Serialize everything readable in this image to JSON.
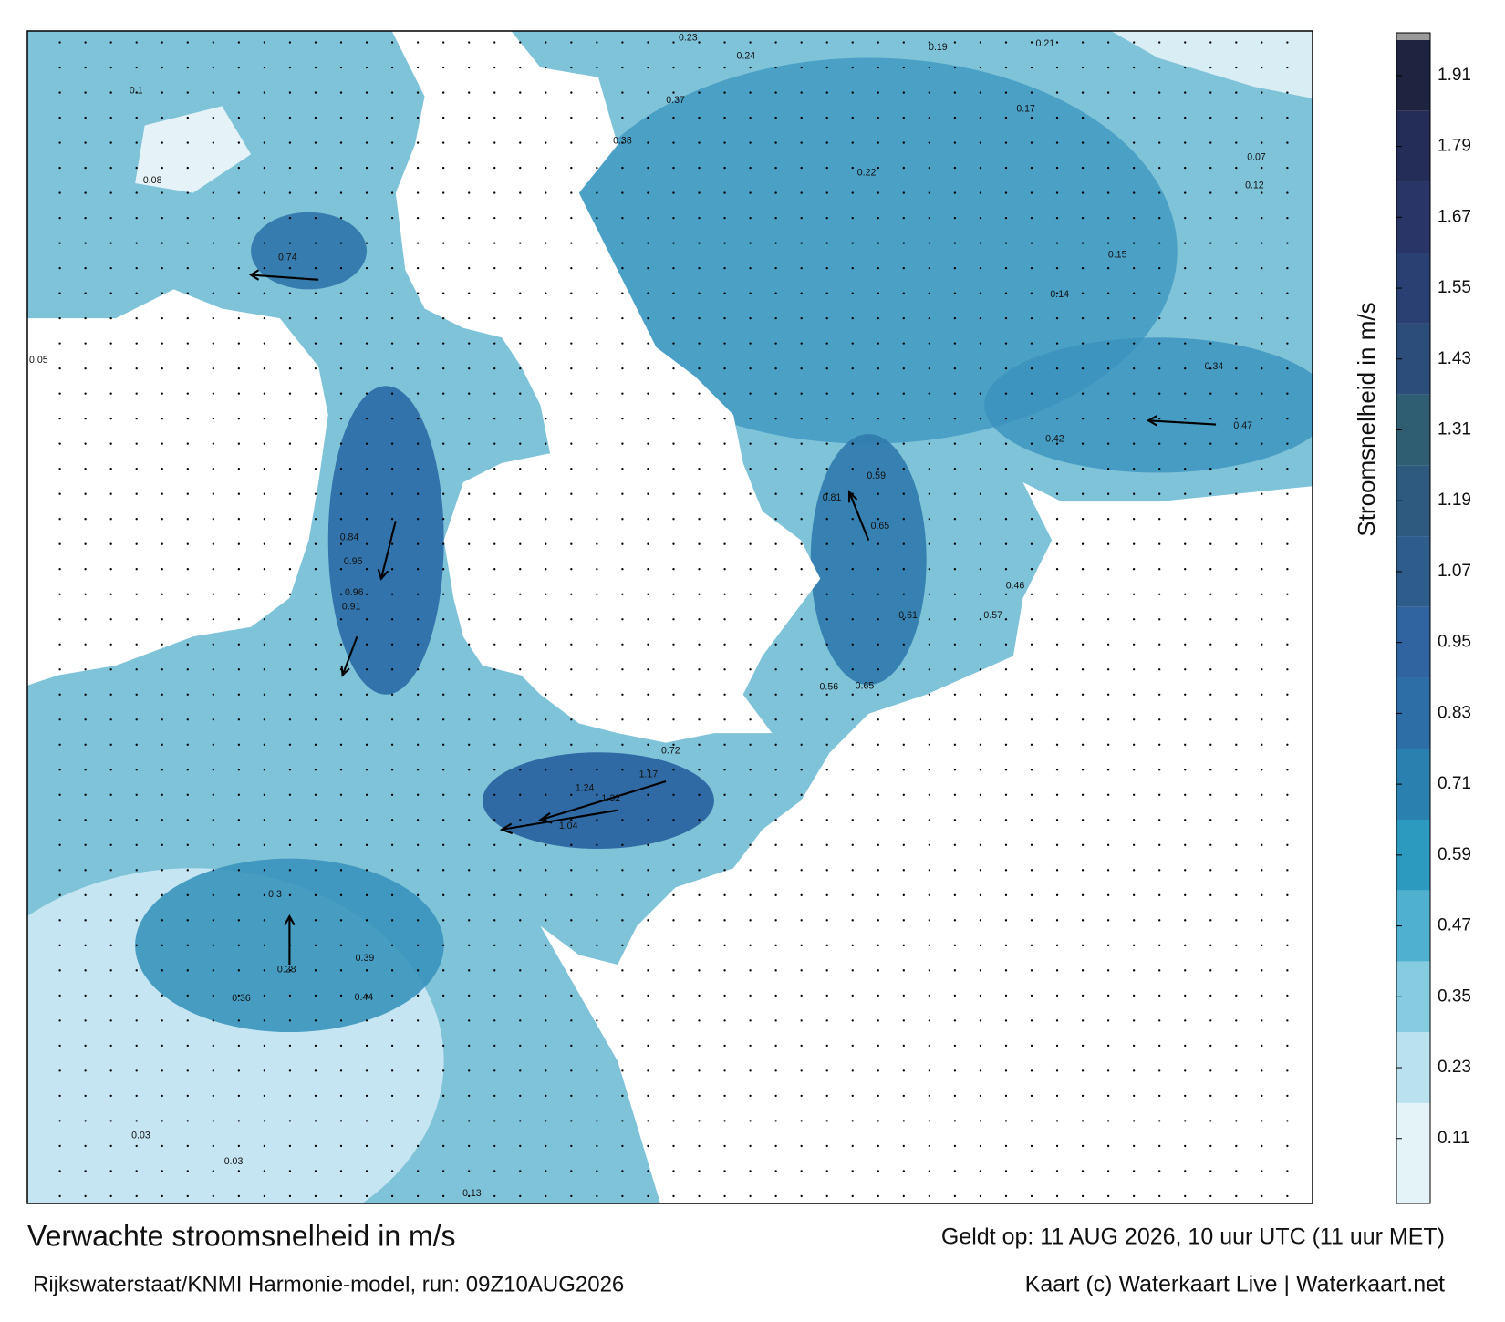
{
  "title": "Verwachte stroomsnelheid in m/s",
  "subtitle": "Rijkswaterstaat/KNMI Harmonie-model, run: 09Z10AUG2026",
  "valid_time": "Geldt op: 11 AUG 2026, 10 uur UTC (11 uur MET)",
  "credit": "Kaart (c) Waterkaart Live | Waterkaart.net",
  "colorbar": {
    "label": "Stroomsnelheid in m/s",
    "clim": [
      0,
      1.97
    ],
    "ticks": [
      0.11,
      0.23,
      0.35,
      0.47,
      0.59,
      0.71,
      0.83,
      0.95,
      1.07,
      1.19,
      1.31,
      1.43,
      1.55,
      1.67,
      1.79,
      1.91
    ],
    "colors": [
      "#e4f3f8",
      "#b9e2ee",
      "#86cbe0",
      "#4fb0cf",
      "#2c9abf",
      "#2a81b0",
      "#2d6ea6",
      "#2f64a0",
      "#2e5d8c",
      "#2d5a7e",
      "#2f5e72",
      "#2c4d7a",
      "#2a3f72",
      "#283566",
      "#242c58",
      "#1e2440"
    ]
  },
  "map_labels": [
    0.74,
    0.84,
    0.95,
    0.96,
    0.91,
    1.24,
    1.32,
    1.17,
    1.04,
    0.72,
    0.65,
    0.81,
    0.59,
    0.47,
    0.42,
    0.34,
    0.37,
    0.38,
    0.24,
    0.23,
    0.19,
    0.21,
    0.22,
    0.17,
    0.15,
    0.14,
    0.36,
    0.44,
    0.39,
    0.3,
    0.28,
    0.13,
    0.03,
    0.03,
    0.1,
    0.08,
    0.05,
    0.12,
    0.07,
    0.56,
    0.65,
    0.61,
    0.57,
    0.46
  ]
}
